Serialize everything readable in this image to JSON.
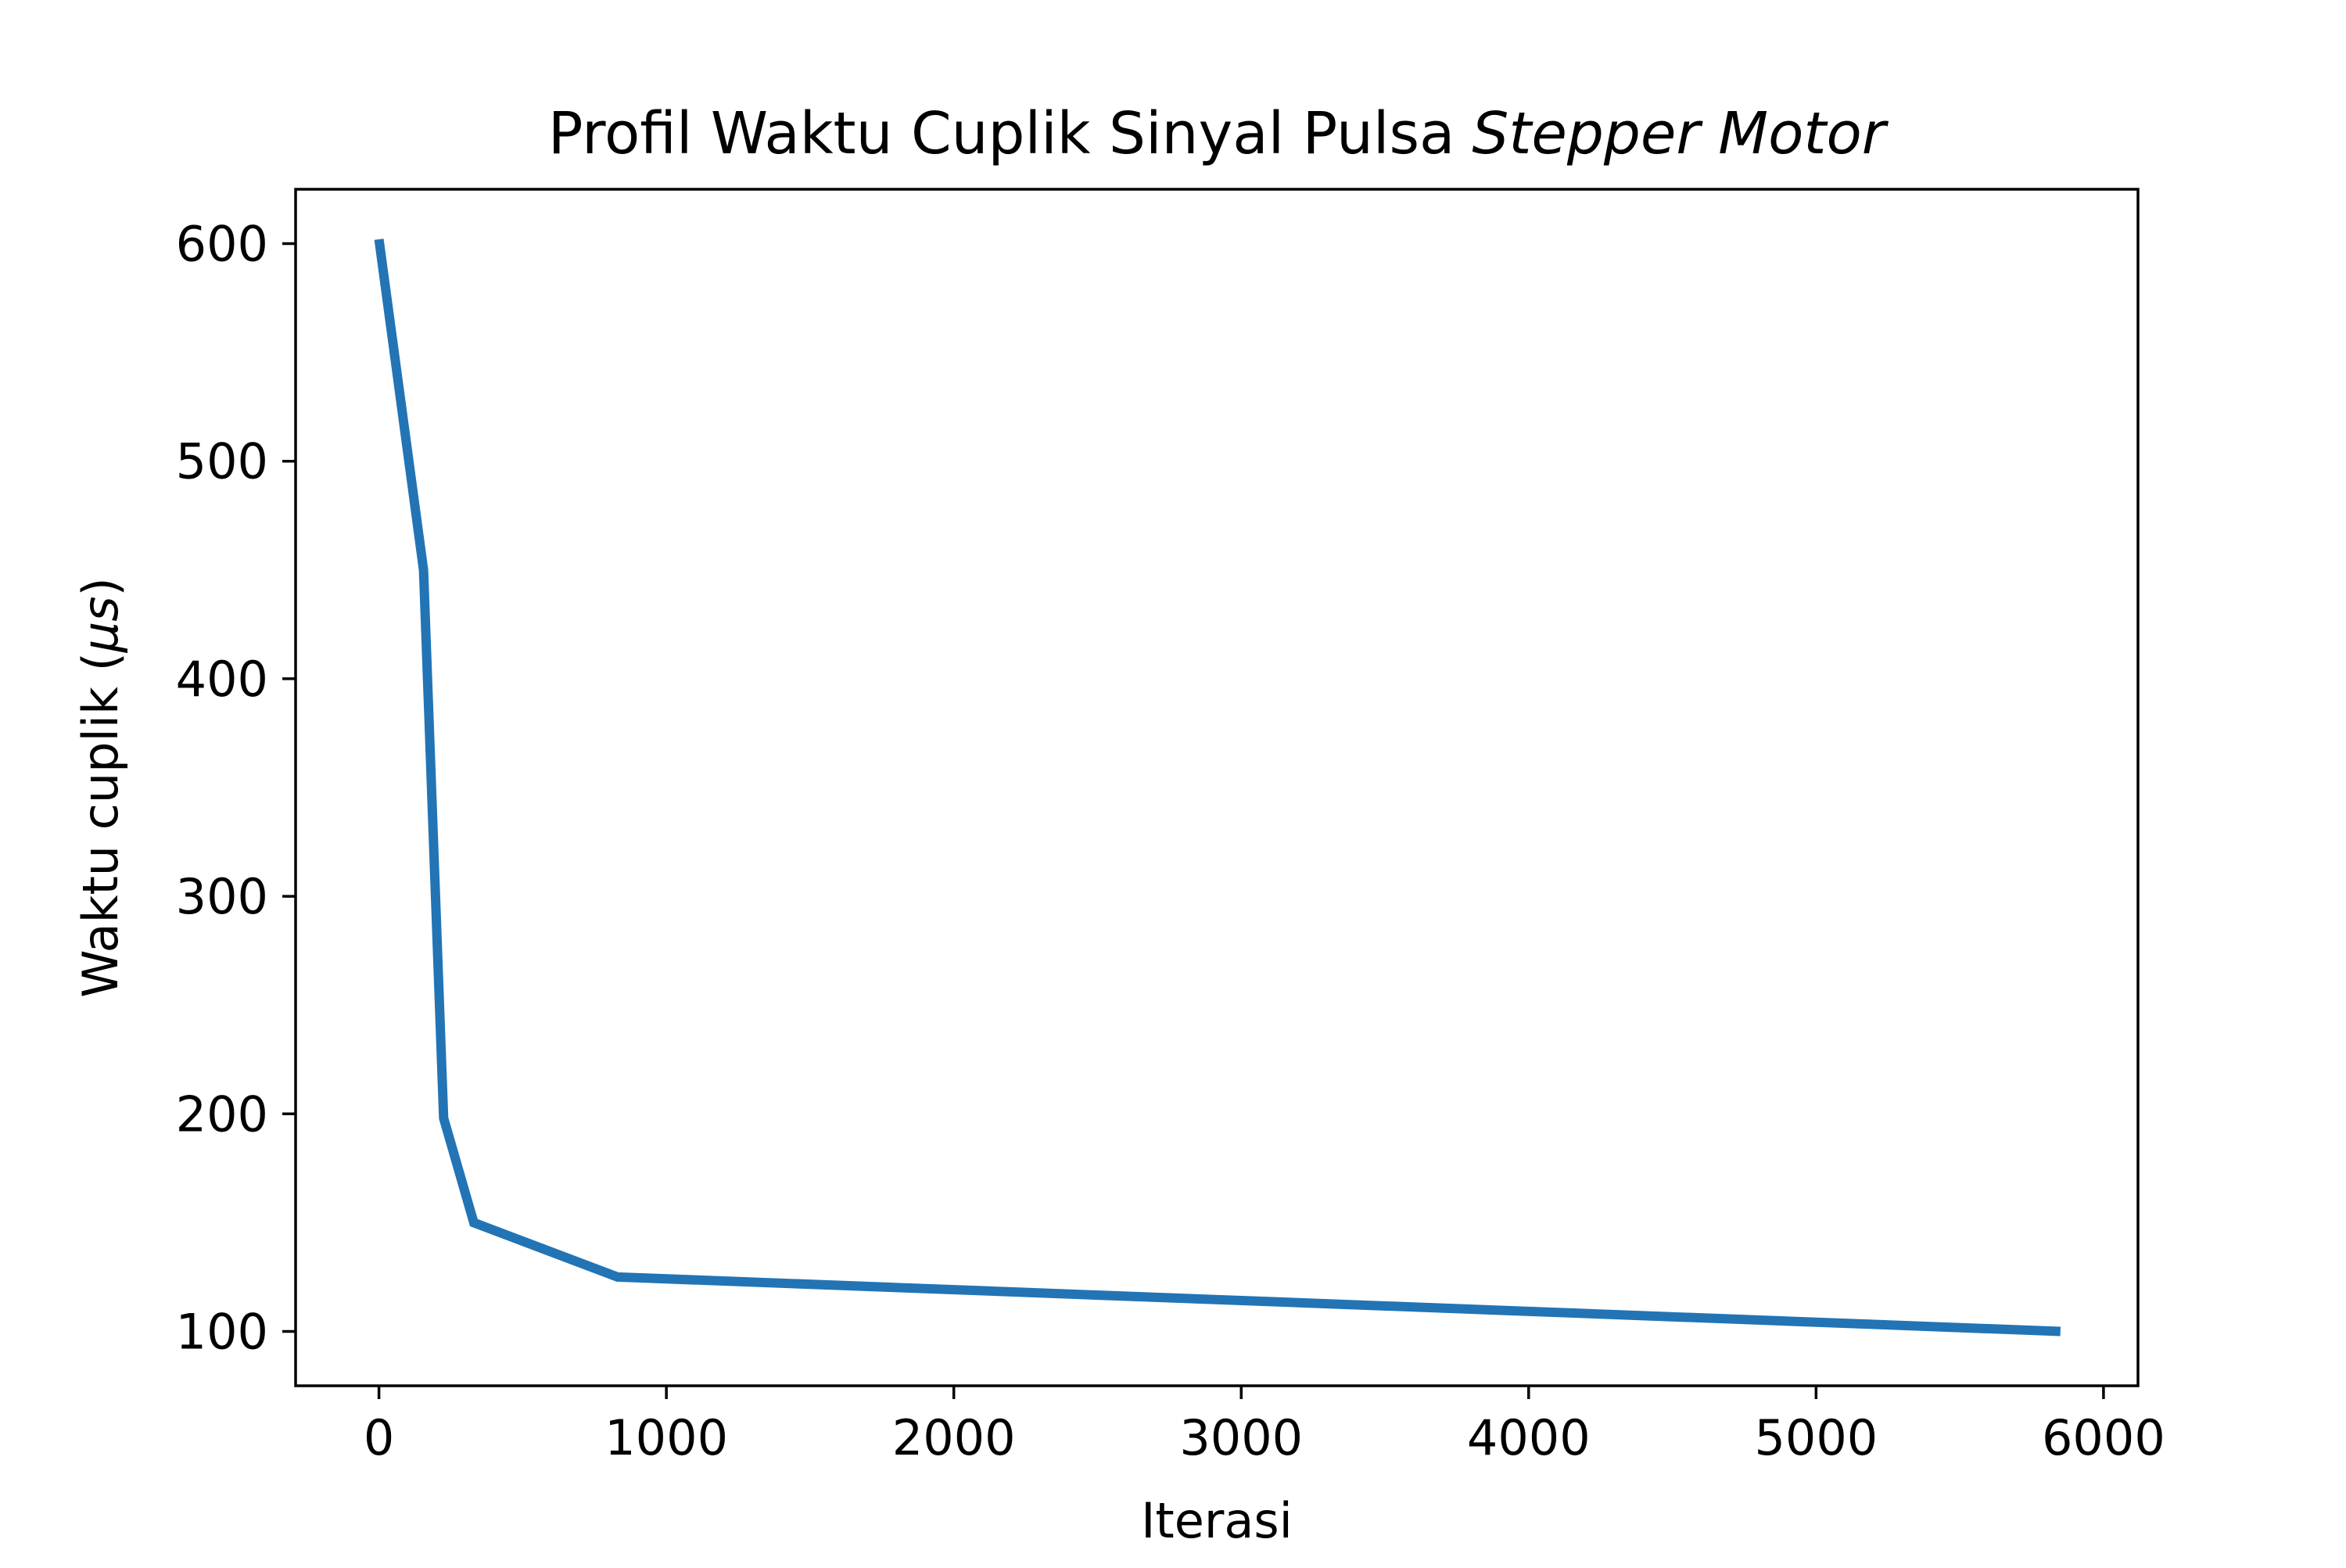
{
  "chart_data": {
    "type": "line",
    "title": "Profil Waktu Cuplik Sinyal Pulsa",
    "title_italic": "Stepper Motor",
    "xlabel": "Iterasi",
    "ylabel_prefix": "Waktu cuplik (",
    "ylabel_unit": "μs",
    "ylabel_suffix": ")",
    "xlim": [
      -290,
      6120
    ],
    "ylim": [
      75,
      625
    ],
    "x_ticks": [
      0,
      1000,
      2000,
      3000,
      4000,
      5000,
      6000
    ],
    "y_ticks": [
      100,
      200,
      300,
      400,
      500,
      600
    ],
    "grid": false,
    "series": [
      {
        "color": "#2274b5",
        "x": [
          0,
          155,
          225,
          330,
          830,
          5850
        ],
        "y": [
          602,
          450,
          198,
          150,
          125,
          100
        ]
      }
    ]
  }
}
